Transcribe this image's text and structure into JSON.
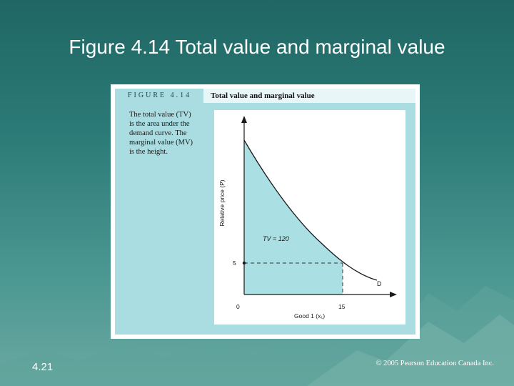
{
  "slide": {
    "title": "Figure 4.14 Total value and marginal value",
    "number": "4.21",
    "copyright": "© 2005 Pearson Education Canada Inc."
  },
  "figure": {
    "label": "FIGURE 4.14",
    "title": "Total value and marginal value",
    "caption_lines": [
      "The total value (TV)",
      "is the area under the",
      "demand curve. The",
      "marginal value (MV)",
      "is the height."
    ]
  },
  "diagram": {
    "y_axis_label": "Relative price (P)",
    "x_axis_label": "Good 1 (x₁)",
    "origin_label": "0",
    "x_tick_label": "15",
    "y_tick_label": "5",
    "area_label": "TV = 120",
    "curve_label": "D",
    "colors": {
      "area": "#aadfe4",
      "curve": "#1a1a1a",
      "dashed": "#333333"
    }
  }
}
